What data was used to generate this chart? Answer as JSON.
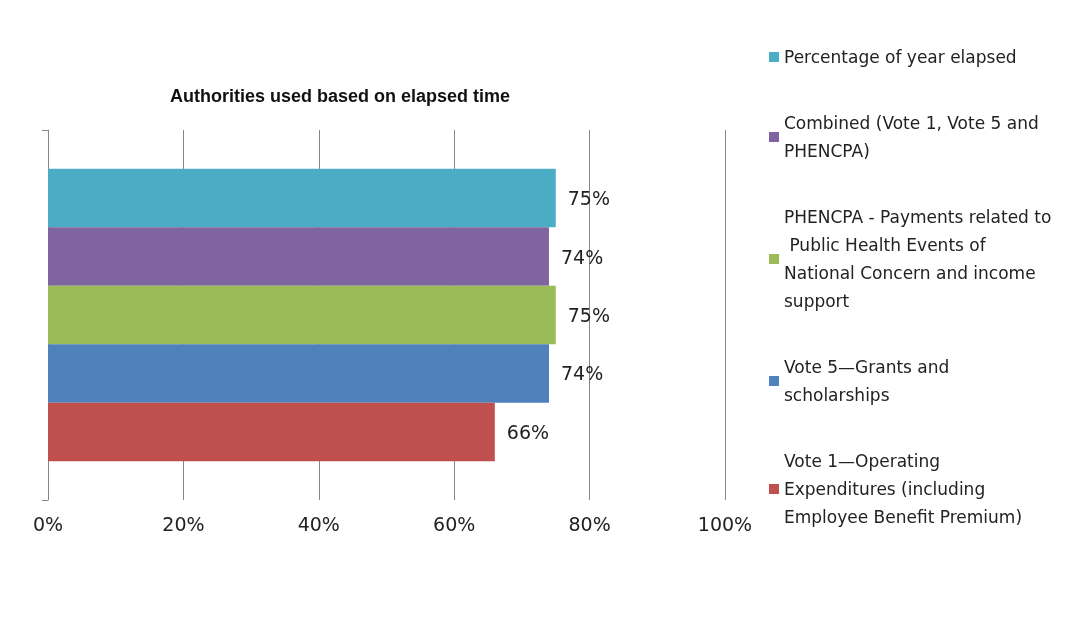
{
  "chart_data": {
    "type": "bar",
    "orientation": "horizontal",
    "title": "Authorities used based on elapsed time",
    "categories": [
      null
    ],
    "series": [
      {
        "name": "Percentage of year elapsed",
        "color": "#4bacc6",
        "values": [
          75
        ],
        "value_labels": [
          "75%"
        ]
      },
      {
        "name": "Combined (Vote 1, Vote 5 and PHENCPA)",
        "color": "#8064a2",
        "values": [
          74
        ],
        "value_labels": [
          "74%"
        ]
      },
      {
        "name": "PHENCPA - Payments related to Public Health Events of National Concern and income support",
        "color": "#9bbb59",
        "values": [
          75
        ],
        "value_labels": [
          "75%"
        ]
      },
      {
        "name": "Vote 5—Grants and scholarships",
        "color": "#4f81bd",
        "values": [
          74
        ],
        "value_labels": [
          "74%"
        ]
      },
      {
        "name": "Vote 1—Operating Expenditures (including Employee Benefit Premium)",
        "color": "#c0504d",
        "values": [
          66
        ],
        "value_labels": [
          "66%"
        ]
      }
    ],
    "xlim": [
      0,
      100
    ],
    "xticks": [
      {
        "value": 0,
        "label": "0%"
      },
      {
        "value": 20,
        "label": "20%"
      },
      {
        "value": 40,
        "label": "40%"
      },
      {
        "value": 60,
        "label": "60%"
      },
      {
        "value": 80,
        "label": "80%"
      },
      {
        "value": 100,
        "label": "100%"
      }
    ],
    "grid": "x",
    "legend": "right"
  }
}
